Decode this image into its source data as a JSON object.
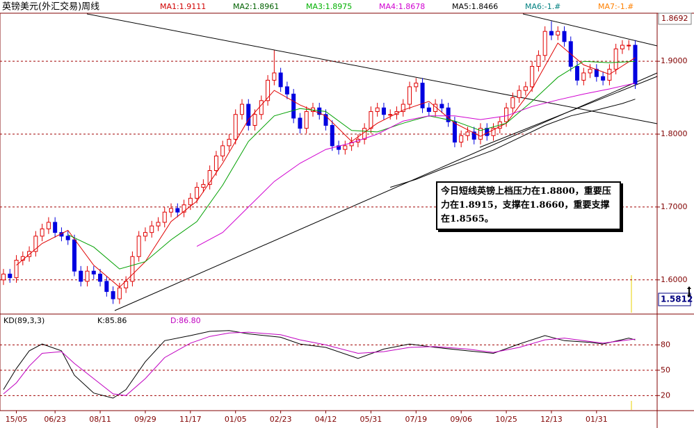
{
  "chart_data": {
    "type": "candlestick",
    "title": "英镑美元(外汇交易)周线",
    "legend": [
      {
        "name": "MA1:1.9111",
        "color": "#d00000"
      },
      {
        "name": "MA2:1.8961",
        "color": "#006000"
      },
      {
        "name": "MA3:1.8975",
        "color": "#00b000"
      },
      {
        "name": "MA4:1.8678",
        "color": "#d000d0"
      },
      {
        "name": "MA5:1.8466",
        "color": "#000000"
      },
      {
        "name": "MA6:-1.#",
        "color": "#008080"
      },
      {
        "name": "MA7:-1.#",
        "color": "#ff8000"
      }
    ],
    "up_color": "#e00000",
    "down_color": "#0000e0",
    "open": [
      1.6,
      1.608,
      1.603,
      1.627,
      1.632,
      1.639,
      1.66,
      1.67,
      1.679,
      1.665,
      1.66,
      1.655,
      1.612,
      1.598,
      1.612,
      1.608,
      1.598,
      1.584,
      1.574,
      1.589,
      1.598,
      1.632,
      1.66,
      1.665,
      1.674,
      1.679,
      1.693,
      1.698,
      1.693,
      1.703,
      1.712,
      1.727,
      1.731,
      1.75,
      1.77,
      1.784,
      1.793,
      1.827,
      1.841,
      1.812,
      1.827,
      1.846,
      1.874,
      1.884,
      1.865,
      1.855,
      1.822,
      1.808,
      1.831,
      1.836,
      1.827,
      1.812,
      1.784,
      1.779,
      1.784,
      1.789,
      1.793,
      1.808,
      1.831,
      1.836,
      1.827,
      1.827,
      1.831,
      1.841,
      1.865,
      1.87,
      1.836,
      1.831,
      1.841,
      1.836,
      1.817,
      1.789,
      1.798,
      1.803,
      1.793,
      1.808,
      1.798,
      1.808,
      1.817,
      1.836,
      1.85,
      1.86,
      1.865,
      1.893,
      1.908,
      1.941,
      1.936,
      1.941,
      1.927,
      1.893,
      1.874,
      1.884,
      1.889,
      1.879,
      1.874,
      1.889,
      1.917,
      1.922,
      1.922
    ],
    "high": [
      1.615,
      1.615,
      1.634,
      1.639,
      1.646,
      1.667,
      1.677,
      1.686,
      1.686,
      1.672,
      1.667,
      1.662,
      1.619,
      1.619,
      1.619,
      1.615,
      1.605,
      1.591,
      1.596,
      1.605,
      1.639,
      1.667,
      1.672,
      1.681,
      1.686,
      1.7,
      1.705,
      1.705,
      1.71,
      1.719,
      1.734,
      1.738,
      1.757,
      1.777,
      1.791,
      1.8,
      1.834,
      1.848,
      1.848,
      1.834,
      1.853,
      1.881,
      1.915,
      1.891,
      1.872,
      1.862,
      1.829,
      1.838,
      1.843,
      1.843,
      1.834,
      1.819,
      1.791,
      1.791,
      1.796,
      1.8,
      1.815,
      1.838,
      1.843,
      1.843,
      1.834,
      1.838,
      1.848,
      1.872,
      1.877,
      1.877,
      1.843,
      1.848,
      1.848,
      1.843,
      1.824,
      1.805,
      1.81,
      1.81,
      1.815,
      1.815,
      1.815,
      1.824,
      1.843,
      1.857,
      1.867,
      1.872,
      1.9,
      1.915,
      1.948,
      1.955,
      1.948,
      1.948,
      1.934,
      1.9,
      1.891,
      1.896,
      1.896,
      1.886,
      1.896,
      1.924,
      1.929,
      1.929,
      1.929
    ],
    "low": [
      1.593,
      1.596,
      1.596,
      1.62,
      1.625,
      1.632,
      1.653,
      1.663,
      1.658,
      1.653,
      1.648,
      1.605,
      1.591,
      1.591,
      1.601,
      1.591,
      1.577,
      1.567,
      1.567,
      1.582,
      1.591,
      1.625,
      1.653,
      1.658,
      1.667,
      1.672,
      1.686,
      1.686,
      1.686,
      1.696,
      1.705,
      1.72,
      1.724,
      1.743,
      1.763,
      1.777,
      1.786,
      1.82,
      1.805,
      1.805,
      1.82,
      1.839,
      1.867,
      1.858,
      1.848,
      1.815,
      1.801,
      1.801,
      1.824,
      1.82,
      1.805,
      1.777,
      1.772,
      1.772,
      1.777,
      1.782,
      1.786,
      1.801,
      1.824,
      1.82,
      1.82,
      1.82,
      1.824,
      1.834,
      1.858,
      1.829,
      1.824,
      1.824,
      1.829,
      1.81,
      1.782,
      1.782,
      1.791,
      1.786,
      1.786,
      1.791,
      1.791,
      1.801,
      1.81,
      1.829,
      1.843,
      1.853,
      1.858,
      1.886,
      1.901,
      1.929,
      1.929,
      1.92,
      1.886,
      1.867,
      1.867,
      1.877,
      1.872,
      1.867,
      1.867,
      1.882,
      1.91,
      1.915,
      1.862
    ],
    "close": [
      1.608,
      1.603,
      1.627,
      1.632,
      1.639,
      1.66,
      1.67,
      1.679,
      1.665,
      1.66,
      1.655,
      1.612,
      1.598,
      1.612,
      1.608,
      1.598,
      1.584,
      1.574,
      1.589,
      1.598,
      1.632,
      1.66,
      1.665,
      1.674,
      1.679,
      1.693,
      1.698,
      1.693,
      1.703,
      1.712,
      1.727,
      1.731,
      1.75,
      1.77,
      1.784,
      1.793,
      1.827,
      1.841,
      1.812,
      1.827,
      1.846,
      1.874,
      1.884,
      1.865,
      1.855,
      1.822,
      1.808,
      1.831,
      1.836,
      1.827,
      1.812,
      1.784,
      1.779,
      1.784,
      1.789,
      1.793,
      1.808,
      1.831,
      1.836,
      1.827,
      1.827,
      1.831,
      1.841,
      1.865,
      1.87,
      1.836,
      1.831,
      1.841,
      1.836,
      1.817,
      1.789,
      1.798,
      1.803,
      1.793,
      1.808,
      1.798,
      1.808,
      1.817,
      1.836,
      1.85,
      1.86,
      1.865,
      1.893,
      1.908,
      1.941,
      1.936,
      1.941,
      1.927,
      1.893,
      1.874,
      1.884,
      1.889,
      1.879,
      1.874,
      1.889,
      1.917,
      1.922,
      1.922,
      1.869
    ],
    "lines": [
      {
        "color": "#e00000",
        "x": [
          2,
          6,
          10,
          14,
          18,
          22,
          26,
          30,
          34,
          38,
          42,
          46,
          50,
          54,
          58,
          62,
          66,
          70,
          74,
          78,
          82,
          86,
          90,
          94,
          98
        ],
        "values": [
          1.62,
          1.65,
          1.668,
          1.62,
          1.59,
          1.625,
          1.68,
          1.708,
          1.76,
          1.82,
          1.86,
          1.84,
          1.825,
          1.79,
          1.815,
          1.833,
          1.845,
          1.815,
          1.797,
          1.815,
          1.862,
          1.925,
          1.895,
          1.882,
          1.905
        ]
      },
      {
        "color": "#00a000",
        "x": [
          10,
          14,
          18,
          22,
          26,
          30,
          34,
          38,
          42,
          46,
          50,
          54,
          58,
          62,
          66,
          70,
          74,
          78,
          82,
          86,
          90,
          94,
          98
        ],
        "values": [
          1.662,
          1.645,
          1.615,
          1.625,
          1.655,
          1.68,
          1.73,
          1.79,
          1.825,
          1.835,
          1.831,
          1.805,
          1.803,
          1.815,
          1.825,
          1.818,
          1.805,
          1.815,
          1.845,
          1.878,
          1.9,
          1.898,
          1.9
        ]
      },
      {
        "color": "#d000d0",
        "x": [
          30,
          34,
          38,
          42,
          46,
          50,
          54,
          58,
          62,
          66,
          70,
          74,
          78,
          82,
          86,
          90,
          94,
          98
        ],
        "values": [
          1.646,
          1.665,
          1.7,
          1.735,
          1.76,
          1.779,
          1.788,
          1.8,
          1.818,
          1.825,
          1.825,
          1.82,
          1.825,
          1.838,
          1.847,
          1.855,
          1.862,
          1.87
        ]
      },
      {
        "color": "#000000",
        "x": [
          60,
          64,
          68,
          72,
          76,
          80,
          84,
          88,
          92,
          96,
          98
        ],
        "values": [
          1.727,
          1.738,
          1.752,
          1.765,
          1.778,
          1.795,
          1.812,
          1.825,
          1.833,
          1.842,
          1.848
        ]
      }
    ],
    "xlim": [
      -0.54,
      101.4
    ],
    "xticks": [
      {
        "value": 2,
        "label": "15/05"
      },
      {
        "value": 8,
        "label": "06/23"
      },
      {
        "value": 15,
        "label": "08/11"
      },
      {
        "value": 22,
        "label": "09/29"
      },
      {
        "value": 29,
        "label": "11/17"
      },
      {
        "value": 36,
        "label": "01/05"
      },
      {
        "value": 43,
        "label": "02/23"
      },
      {
        "value": 50,
        "label": "04/12"
      },
      {
        "value": 57,
        "label": "05/31"
      },
      {
        "value": 64,
        "label": "07/19"
      },
      {
        "value": 71,
        "label": "09/06"
      },
      {
        "value": 78,
        "label": "10/25"
      },
      {
        "value": 85,
        "label": "12/13"
      },
      {
        "value": 92,
        "label": "01/31"
      }
    ],
    "ylim": [
      1.555,
      1.965
    ],
    "yticks": [
      {
        "value": 1.6,
        "label": "1.6000"
      },
      {
        "value": 1.7,
        "label": "1.7000"
      },
      {
        "value": 1.8,
        "label": "1.8000"
      },
      {
        "value": 1.9,
        "label": "1.9000"
      }
    ],
    "grid": true,
    "last_price_label": "1.8692",
    "cursor_price_label": "1.5812",
    "annotation": "今日短线英镑上档压力在1.8800，重要压力在1.8915，支撑在1.8660，重要支撑在1.8565。",
    "indicator": {
      "type": "line",
      "title": "KD(89,3,3)",
      "ylim": [
        3,
        114
      ],
      "yticks": [
        20,
        50,
        80
      ],
      "series": [
        {
          "name": "K:85.86",
          "color": "#000000",
          "x": [
            0,
            2,
            4,
            6,
            9,
            11,
            14,
            17,
            19,
            22,
            25,
            29,
            32,
            35,
            38,
            43,
            46,
            50,
            55,
            59,
            63,
            67,
            72,
            76,
            80,
            84,
            87,
            91,
            93,
            97,
            98
          ],
          "values": [
            27,
            52,
            73,
            81,
            73,
            44,
            23,
            17,
            27,
            60,
            85,
            91,
            96,
            97,
            93,
            89,
            81,
            77,
            64,
            75,
            81,
            77,
            73,
            70,
            81,
            91,
            85,
            83,
            81,
            88,
            85.86
          ]
        },
        {
          "name": "D:86.80",
          "color": "#c000c0",
          "x": [
            0,
            2,
            4,
            6,
            9,
            11,
            14,
            17,
            19,
            22,
            25,
            29,
            32,
            35,
            38,
            43,
            46,
            50,
            55,
            59,
            63,
            67,
            72,
            76,
            80,
            84,
            87,
            91,
            93,
            97,
            98
          ],
          "values": [
            22,
            35,
            55,
            70,
            72,
            58,
            40,
            22,
            20,
            40,
            65,
            82,
            90,
            94,
            95,
            92,
            86,
            80,
            70,
            72,
            77,
            78,
            75,
            71,
            77,
            86,
            88,
            84,
            82,
            86,
            86.8
          ]
        }
      ]
    }
  }
}
